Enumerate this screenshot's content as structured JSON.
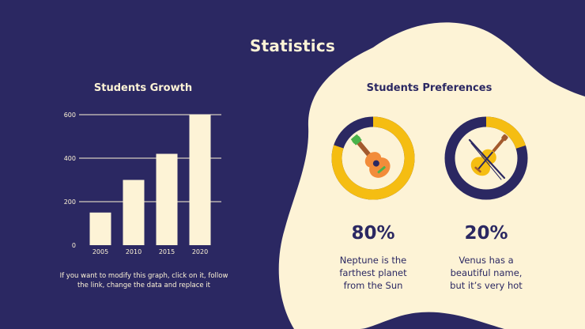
{
  "slide": {
    "title": "Statistics",
    "note": "If you want to modify this graph, click on it, follow the link, change the data and replace it"
  },
  "colors": {
    "background": "#2b2862",
    "cream": "#fdf3d6",
    "accent": "#f5bd12"
  },
  "chart_data": {
    "type": "bar",
    "title": "Students Growth",
    "categories": [
      "2005",
      "2010",
      "2015",
      "2020"
    ],
    "values": [
      150,
      300,
      420,
      600
    ],
    "ylim": [
      0,
      600
    ],
    "yticks": [
      0,
      200,
      400,
      600
    ],
    "grid": true,
    "xlabel": "",
    "ylabel": ""
  },
  "preferences": {
    "title": "Students Preferences",
    "items": [
      {
        "percent": 80,
        "label": "80%",
        "description_lines": [
          "Neptune is the",
          "farthest planet",
          "from the Sun"
        ],
        "icon": "guitar-icon"
      },
      {
        "percent": 20,
        "label": "20%",
        "description_lines": [
          "Venus has a",
          "beautiful name,",
          "but it’s very hot"
        ],
        "icon": "violin-icon"
      }
    ]
  }
}
